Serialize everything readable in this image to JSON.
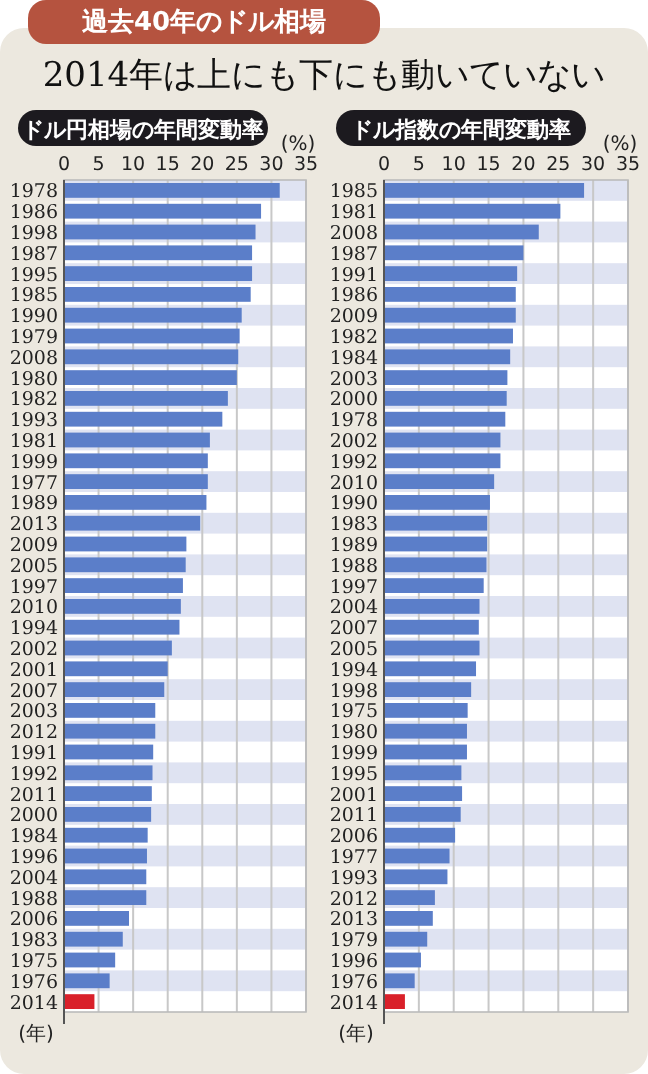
{
  "chart_data": [
    {
      "type": "bar",
      "orientation": "horizontal",
      "title": "ドル円相場の年間変動率",
      "xlabel": "(%)",
      "ylabel": "(年)",
      "annotations": [
        "過去40年のドル相場",
        "2014年は上にも下にも動いていない"
      ],
      "categories": [
        "1978",
        "1986",
        "1998",
        "1987",
        "1995",
        "1985",
        "1990",
        "1979",
        "2008",
        "1980",
        "1982",
        "1993",
        "1981",
        "1999",
        "1977",
        "1989",
        "2013",
        "2009",
        "2005",
        "1997",
        "2010",
        "1994",
        "2002",
        "2001",
        "2007",
        "2003",
        "2012",
        "1991",
        "1992",
        "2011",
        "2000",
        "1984",
        "1996",
        "2004",
        "1988",
        "2006",
        "1983",
        "1975",
        "1976",
        "2014"
      ],
      "values": [
        31.2,
        28.5,
        27.7,
        27.2,
        27.2,
        27.0,
        25.7,
        25.4,
        25.2,
        25.0,
        23.7,
        22.9,
        21.1,
        20.8,
        20.8,
        20.6,
        19.7,
        17.7,
        17.6,
        17.2,
        16.9,
        16.7,
        15.6,
        15.0,
        14.5,
        13.2,
        13.2,
        12.9,
        12.8,
        12.7,
        12.6,
        12.1,
        12.0,
        11.9,
        11.9,
        9.4,
        8.5,
        7.4,
        6.6,
        4.4
      ],
      "colors": [
        "#5b7ec9",
        "#5b7ec9",
        "#5b7ec9",
        "#5b7ec9",
        "#5b7ec9",
        "#5b7ec9",
        "#5b7ec9",
        "#5b7ec9",
        "#5b7ec9",
        "#5b7ec9",
        "#5b7ec9",
        "#5b7ec9",
        "#5b7ec9",
        "#5b7ec9",
        "#5b7ec9",
        "#5b7ec9",
        "#5b7ec9",
        "#5b7ec9",
        "#5b7ec9",
        "#5b7ec9",
        "#5b7ec9",
        "#5b7ec9",
        "#5b7ec9",
        "#5b7ec9",
        "#5b7ec9",
        "#5b7ec9",
        "#5b7ec9",
        "#5b7ec9",
        "#5b7ec9",
        "#5b7ec9",
        "#5b7ec9",
        "#5b7ec9",
        "#5b7ec9",
        "#5b7ec9",
        "#5b7ec9",
        "#5b7ec9",
        "#5b7ec9",
        "#5b7ec9",
        "#5b7ec9",
        "#d9202a"
      ],
      "xlim": [
        0,
        35
      ],
      "xticks": [
        0,
        5,
        10,
        15,
        20,
        25,
        30,
        35
      ],
      "grid": "x"
    },
    {
      "type": "bar",
      "orientation": "horizontal",
      "title": "ドル指数の年間変動率",
      "xlabel": "(%)",
      "ylabel": "(年)",
      "categories": [
        "1985",
        "1981",
        "2008",
        "1987",
        "1991",
        "1986",
        "2009",
        "1982",
        "1984",
        "2003",
        "2000",
        "1978",
        "2002",
        "1992",
        "2010",
        "1990",
        "1983",
        "1989",
        "1988",
        "1997",
        "2004",
        "2007",
        "2005",
        "1994",
        "1998",
        "1975",
        "1980",
        "1999",
        "1995",
        "2001",
        "2011",
        "2006",
        "1977",
        "1993",
        "2012",
        "2013",
        "1979",
        "1996",
        "1976",
        "2014"
      ],
      "values": [
        28.7,
        25.3,
        22.2,
        20.0,
        19.1,
        18.9,
        18.9,
        18.5,
        18.1,
        17.7,
        17.6,
        17.4,
        16.7,
        16.7,
        15.8,
        15.2,
        14.8,
        14.8,
        14.7,
        14.3,
        13.7,
        13.6,
        13.7,
        13.2,
        12.5,
        12.0,
        11.9,
        11.9,
        11.1,
        11.2,
        11.0,
        10.2,
        9.4,
        9.1,
        7.3,
        7.0,
        6.2,
        5.3,
        4.4,
        3.0
      ],
      "colors": [
        "#5b7ec9",
        "#5b7ec9",
        "#5b7ec9",
        "#5b7ec9",
        "#5b7ec9",
        "#5b7ec9",
        "#5b7ec9",
        "#5b7ec9",
        "#5b7ec9",
        "#5b7ec9",
        "#5b7ec9",
        "#5b7ec9",
        "#5b7ec9",
        "#5b7ec9",
        "#5b7ec9",
        "#5b7ec9",
        "#5b7ec9",
        "#5b7ec9",
        "#5b7ec9",
        "#5b7ec9",
        "#5b7ec9",
        "#5b7ec9",
        "#5b7ec9",
        "#5b7ec9",
        "#5b7ec9",
        "#5b7ec9",
        "#5b7ec9",
        "#5b7ec9",
        "#5b7ec9",
        "#5b7ec9",
        "#5b7ec9",
        "#5b7ec9",
        "#5b7ec9",
        "#5b7ec9",
        "#5b7ec9",
        "#5b7ec9",
        "#5b7ec9",
        "#5b7ec9",
        "#5b7ec9",
        "#d9202a"
      ],
      "xlim": [
        0,
        35
      ],
      "xticks": [
        0,
        5,
        10,
        15,
        20,
        25,
        30,
        35
      ],
      "grid": "x"
    }
  ]
}
